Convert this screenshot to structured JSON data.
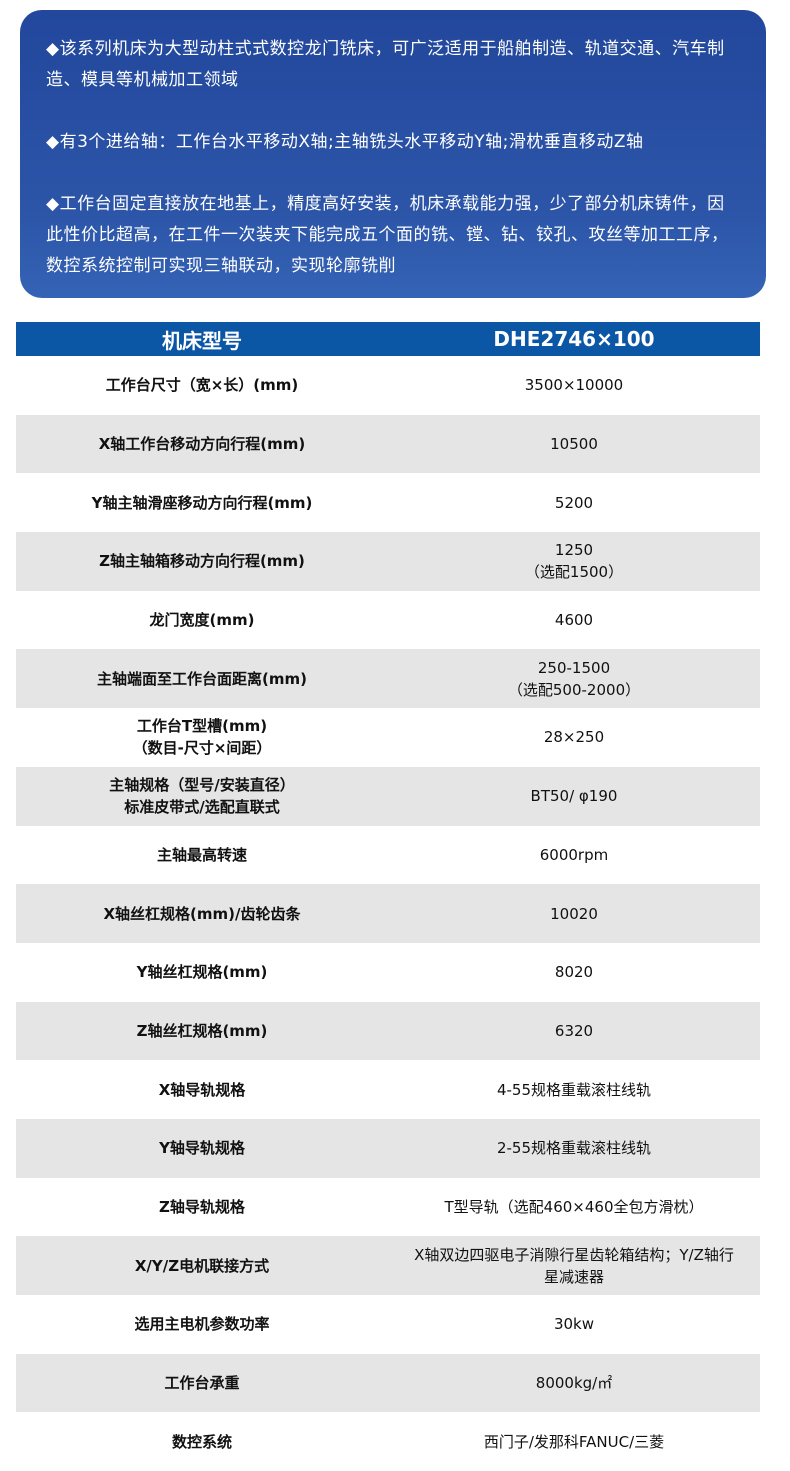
{
  "intro": {
    "paragraphs": [
      "◆该系列机床为大型动柱式式数控龙门铣床，可广泛适用于船舶制造、轨道交通、汽车制造、模具等机械加工领域",
      "◆有3个进给轴：工作台水平移动X轴;主轴铣头水平移动Y轴;滑枕垂直移动Z轴",
      "◆工作台固定直接放在地基上，精度高好安装，机床承载能力强，少了部分机床铸件，因此性价比超高，在工件一次装夹下能完成五个面的铣、镗、钻、铰孔、攻丝等加工工序，数控系统控制可实现三轴联动，实现轮廓铣削"
    ]
  },
  "table": {
    "header": [
      "机床型号",
      "DHE2746×100"
    ],
    "rows": [
      {
        "k": "工作台尺寸（宽×长）(mm)",
        "v": "3500×10000"
      },
      {
        "k": "X轴工作台移动方向行程(mm)",
        "v": "10500"
      },
      {
        "k": "Y轴主轴滑座移动方向行程(mm)",
        "v": "5200"
      },
      {
        "k": "Z轴主轴箱移动方向行程(mm)",
        "v": "1250",
        "v2": "（选配1500）"
      },
      {
        "k": "龙门宽度(mm)",
        "v": "4600"
      },
      {
        "k": "主轴端面至工作台面距离(mm)",
        "v": "250-1500",
        "v2": "（选配500-2000）"
      },
      {
        "k": "工作台T型槽(mm)",
        "k2": "（数目-尺寸×间距）",
        "v": "28×250"
      },
      {
        "k": "主轴规格（型号/安装直径）",
        "k2": "标准皮带式/选配直联式",
        "v": "BT50/ φ190"
      },
      {
        "k": "主轴最高转速",
        "v": "6000rpm"
      },
      {
        "k": "X轴丝杠规格(mm)/齿轮齿条",
        "v": "10020"
      },
      {
        "k": "Y轴丝杠规格(mm)",
        "v": "8020"
      },
      {
        "k": "Z轴丝杠规格(mm)",
        "v": "6320"
      },
      {
        "k": "X轴导轨规格",
        "v": "4-55规格重载滚柱线轨"
      },
      {
        "k": "Y轴导轨规格",
        "v": "2-55规格重载滚柱线轨"
      },
      {
        "k": "Z轴导轨规格",
        "v": "T型导轨（选配460×460全包方滑枕）"
      },
      {
        "k": "X/Y/Z电机联接方式",
        "v": "X轴双边四驱电子消隙行星齿轮箱结构；Y/Z轴行",
        "v2": "星减速器"
      },
      {
        "k": "选用主电机参数功率",
        "v": "30kw"
      },
      {
        "k": "工作台承重",
        "v": "8000kg/㎡"
      },
      {
        "k": "数控系统",
        "v": "西门子/发那科FANUC/三菱"
      }
    ]
  },
  "colors": {
    "banner": "#2a4fa3",
    "header": "#0c56a6",
    "row_alt": "#e6e5e6"
  }
}
